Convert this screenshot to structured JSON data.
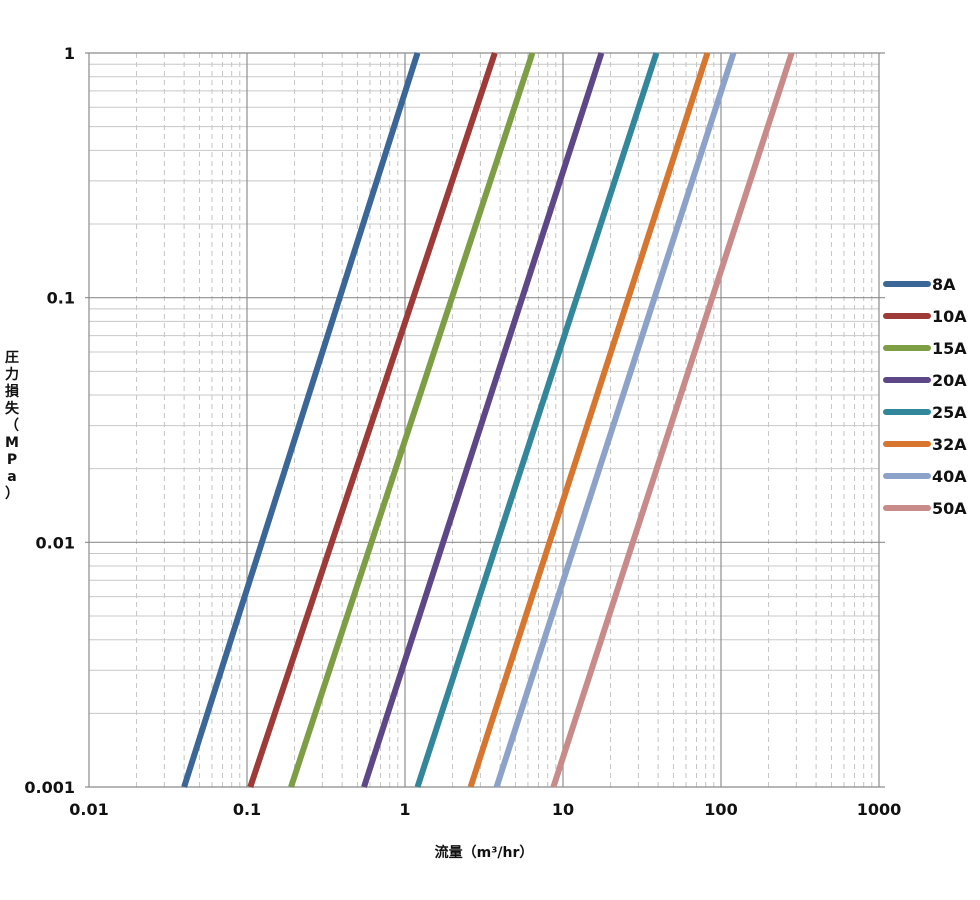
{
  "chart_data": {
    "type": "line",
    "x_scale": "log",
    "y_scale": "log",
    "xlim": [
      0.01,
      1000
    ],
    "ylim": [
      0.001,
      1
    ],
    "xlabel": "流量（m³/hr）",
    "ylabel": "圧力損失（MPa）",
    "x_ticks": [
      "0.01",
      "0.1",
      "1",
      "10",
      "100",
      "1000"
    ],
    "y_ticks": [
      "0.001",
      "0.01",
      "0.1",
      "1"
    ],
    "grid": true,
    "legend_position": "right",
    "series": [
      {
        "name": "8A",
        "color": "#3A6698",
        "points": [
          [
            0.04,
            0.001
          ],
          [
            1.2,
            1
          ]
        ]
      },
      {
        "name": "10A",
        "color": "#9E3A38",
        "points": [
          [
            0.105,
            0.001
          ],
          [
            3.7,
            1
          ]
        ]
      },
      {
        "name": "15A",
        "color": "#7D9E45",
        "points": [
          [
            0.19,
            0.001
          ],
          [
            6.4,
            1
          ]
        ]
      },
      {
        "name": "20A",
        "color": "#5E4787",
        "points": [
          [
            0.55,
            0.001
          ],
          [
            17.5,
            1
          ]
        ]
      },
      {
        "name": "25A",
        "color": "#33879A",
        "points": [
          [
            1.2,
            0.001
          ],
          [
            39,
            1
          ]
        ]
      },
      {
        "name": "32A",
        "color": "#D7762E",
        "points": [
          [
            2.6,
            0.001
          ],
          [
            82,
            1
          ]
        ]
      },
      {
        "name": "40A",
        "color": "#8DA2C8",
        "points": [
          [
            3.8,
            0.001
          ],
          [
            120,
            1
          ]
        ]
      },
      {
        "name": "50A",
        "color": "#C98A8A",
        "points": [
          [
            8.7,
            0.001
          ],
          [
            280,
            1
          ]
        ]
      }
    ]
  }
}
